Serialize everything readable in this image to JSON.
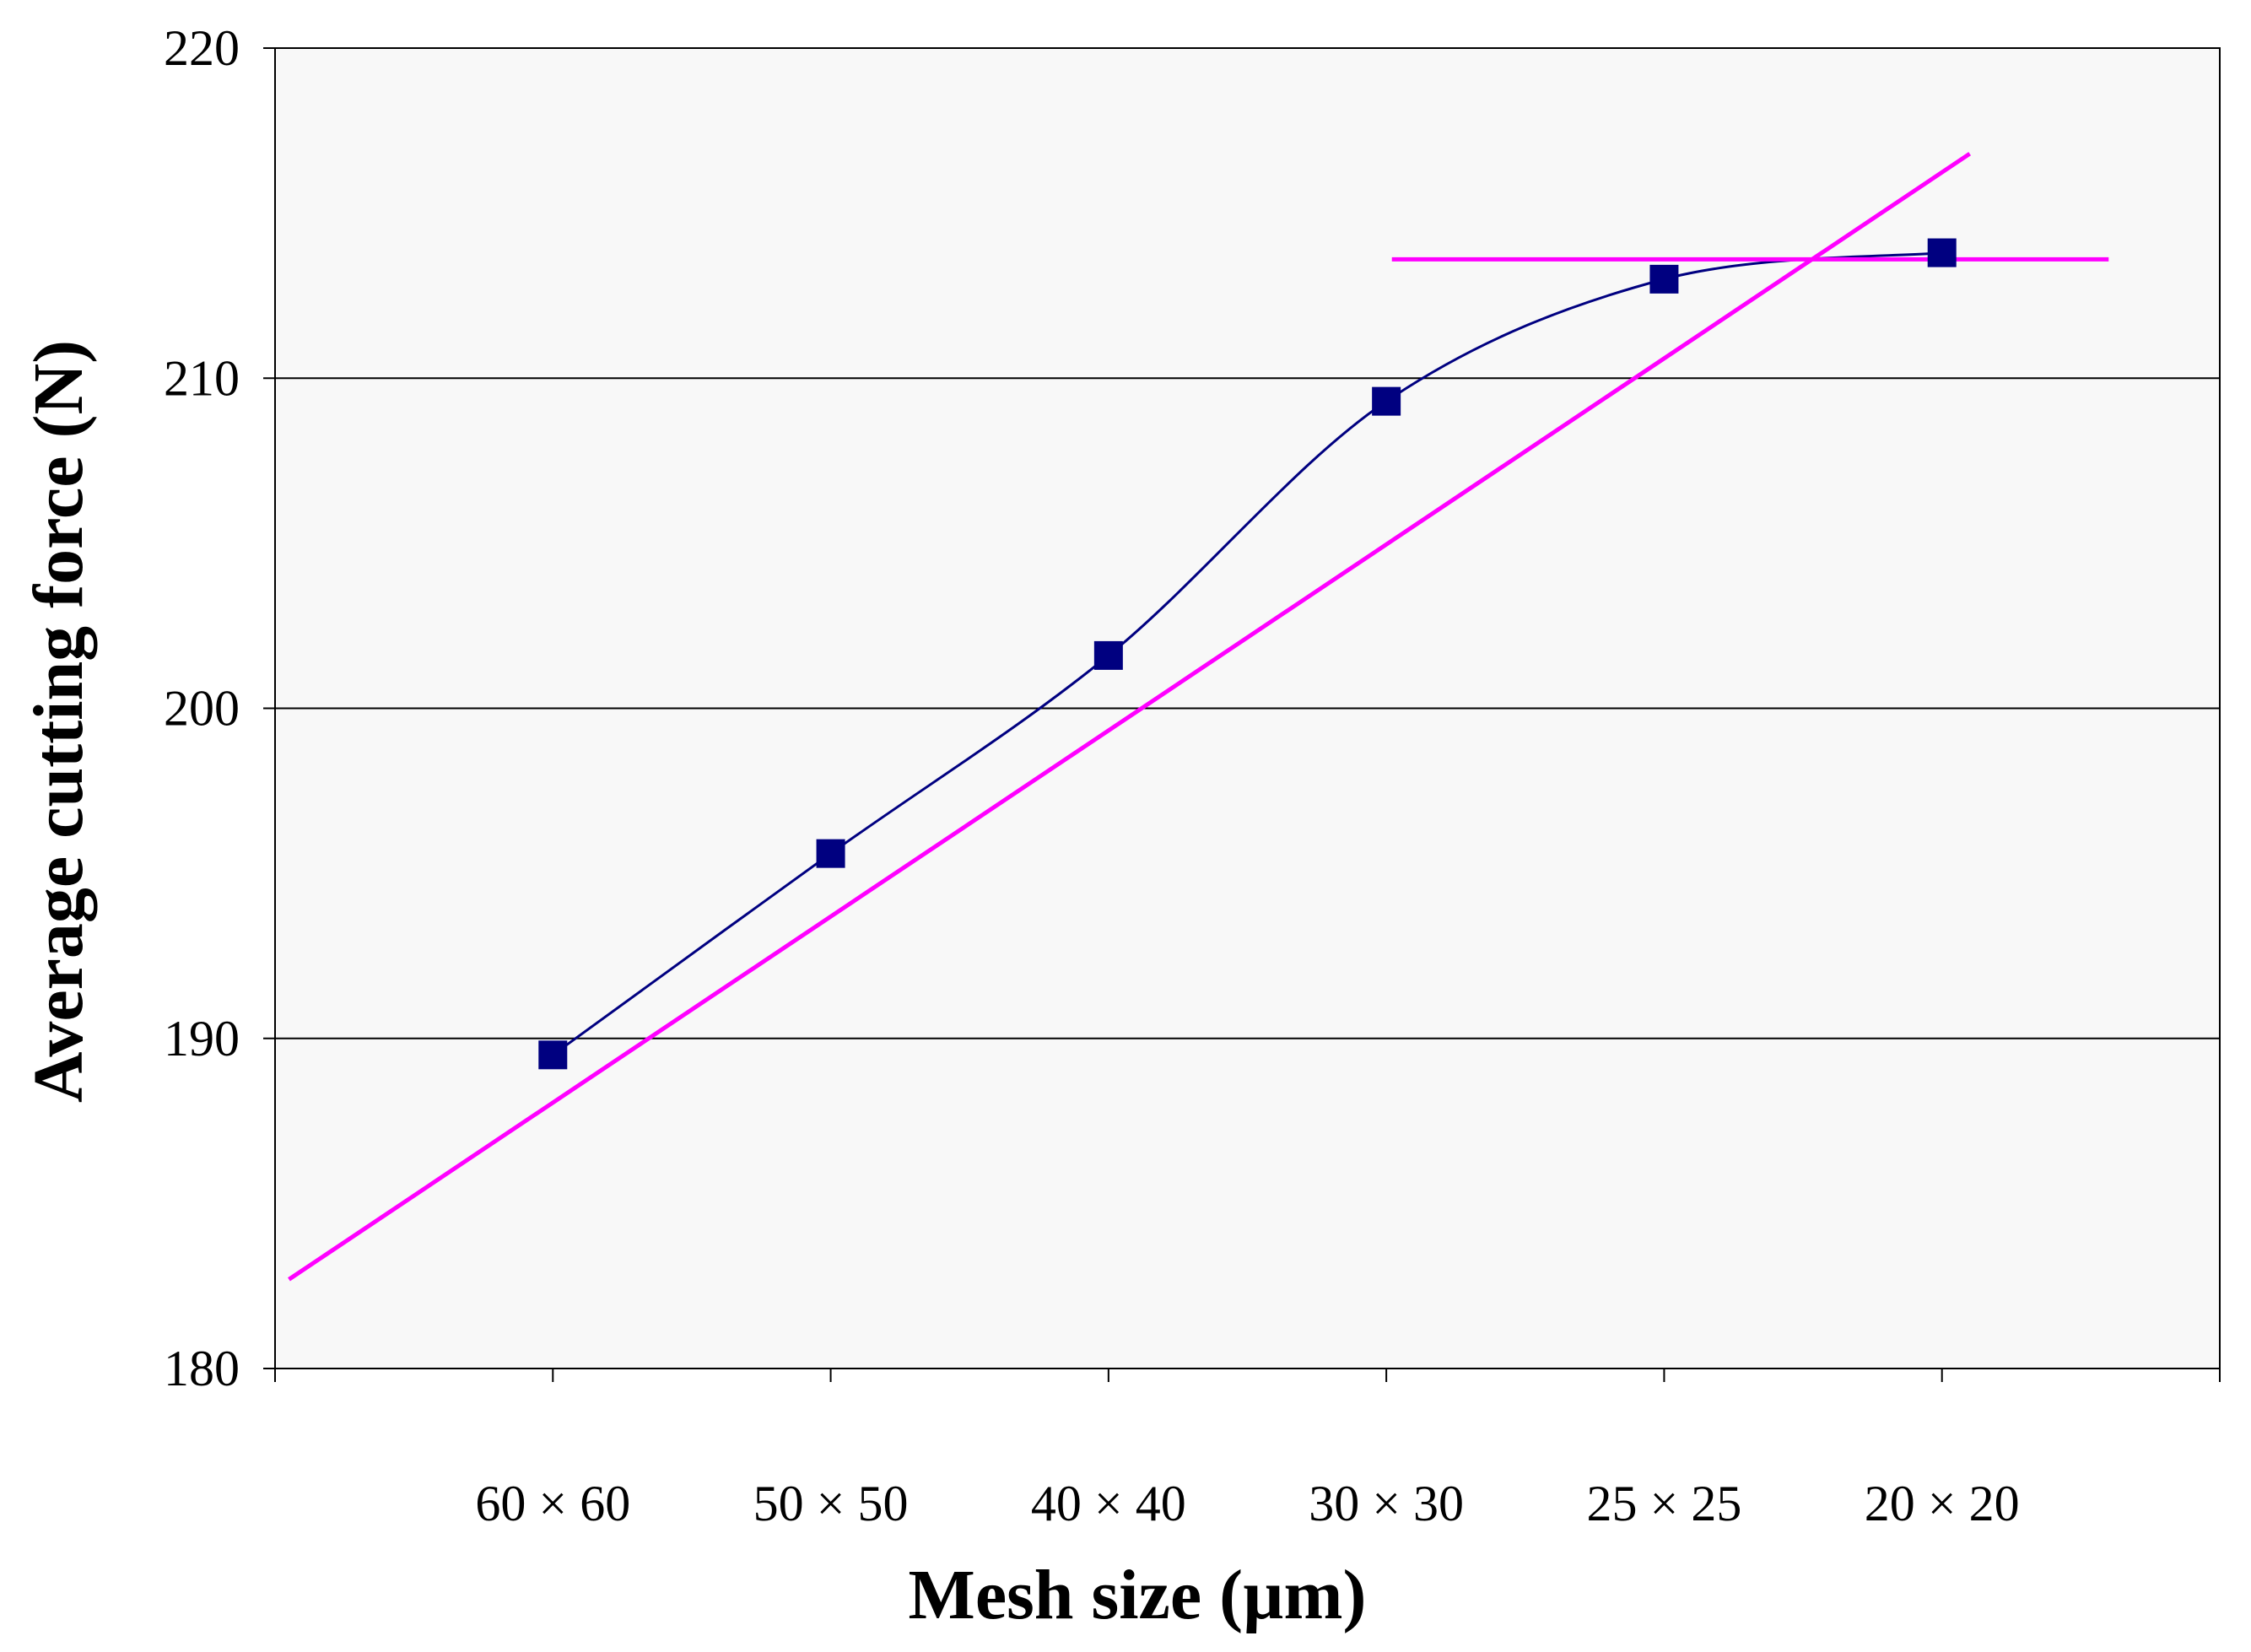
{
  "chart_data": {
    "type": "line",
    "title": "",
    "xlabel": "Mesh size (µm)",
    "ylabel": "Average cutting force (N)",
    "ylim": [
      180,
      220
    ],
    "yticks": [
      180,
      190,
      200,
      210,
      220
    ],
    "categories": [
      "60 × 60",
      "50 × 50",
      "40 × 40",
      "30 × 30",
      "25 × 25",
      "20 × 20"
    ],
    "grid": "horizontal",
    "series": [
      {
        "name": "Average cutting force",
        "values": [
          189.5,
          195.6,
          201.6,
          209.3,
          213.0,
          213.8
        ],
        "color": "#000080",
        "marker": "square",
        "smooth": true
      }
    ],
    "reference_lines": [
      {
        "name": "trend-line",
        "color": "#ff00ff",
        "x_start": 0.05,
        "x_end": 6.1,
        "y_start": 182.7,
        "y_end": 216.8
      },
      {
        "name": "plateau-line",
        "color": "#ff00ff",
        "x_start": 4.02,
        "x_end": 6.6,
        "y_start": 213.6,
        "y_end": 213.6
      }
    ],
    "plot_background": "#f8f8f8"
  }
}
